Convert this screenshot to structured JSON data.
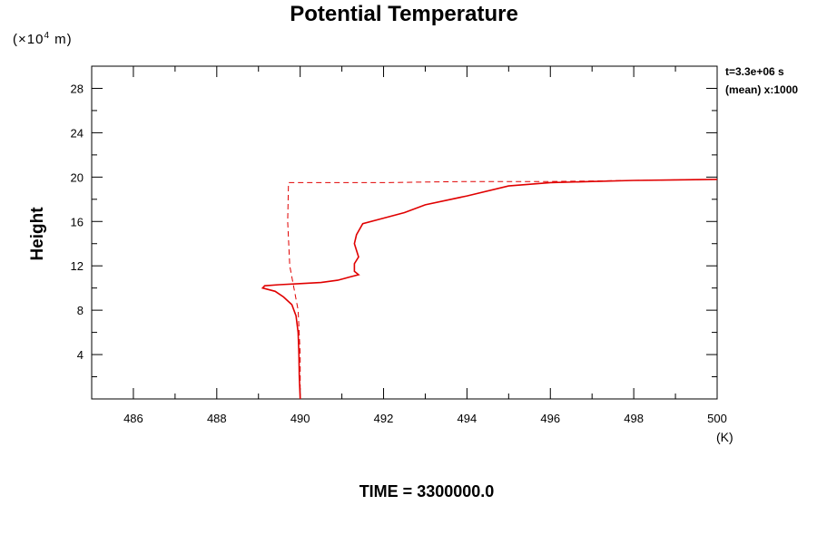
{
  "chart_data": {
    "type": "line",
    "title": "Potential Temperature",
    "ylabel": "Height",
    "yunit_prefix": "(×10",
    "yunit_exp": "4",
    "yunit_suffix": " m)",
    "xunit": "(K)",
    "info_time": "t=3.3e+06 s",
    "info_mean": "(mean) x:1000",
    "time_label": "TIME = 3300000.0",
    "xlim": [
      485,
      500
    ],
    "ylim": [
      0,
      30
    ],
    "xticks": [
      486,
      488,
      490,
      492,
      494,
      496,
      498,
      500
    ],
    "yticks": [
      4,
      8,
      12,
      16,
      20,
      24,
      28
    ],
    "grid": false,
    "series": [
      {
        "style": "solid",
        "color": "#e00000",
        "x": [
          490.0,
          489.98,
          489.97,
          489.95,
          489.9,
          489.8,
          489.6,
          489.4,
          489.1,
          489.15,
          489.5,
          490.0,
          490.5,
          490.9,
          491.2,
          491.4,
          491.3,
          491.3,
          491.4,
          491.35,
          491.3,
          491.35,
          491.5,
          492.0,
          492.5,
          493.0,
          494.0,
          495.0,
          496.0,
          497.0,
          498.0,
          499.0,
          500.0
        ],
        "y": [
          0.0,
          2.0,
          4.0,
          6.0,
          7.5,
          8.5,
          9.2,
          9.7,
          10.0,
          10.2,
          10.3,
          10.4,
          10.5,
          10.7,
          11.0,
          11.2,
          11.5,
          12.2,
          12.8,
          13.4,
          14.0,
          14.8,
          15.8,
          16.3,
          16.8,
          17.5,
          18.3,
          19.2,
          19.5,
          19.6,
          19.7,
          19.75,
          19.8
        ]
      },
      {
        "style": "dashed",
        "color": "#e00000",
        "x": [
          490.0,
          490.0,
          489.95,
          489.85,
          489.75,
          489.7,
          489.72,
          490.5,
          492.0,
          494.0,
          496.0,
          498.0,
          500.0
        ],
        "y": [
          0.0,
          4.0,
          8.0,
          10.0,
          12.0,
          16.0,
          19.5,
          19.5,
          19.5,
          19.6,
          19.6,
          19.7,
          19.8
        ]
      }
    ]
  }
}
